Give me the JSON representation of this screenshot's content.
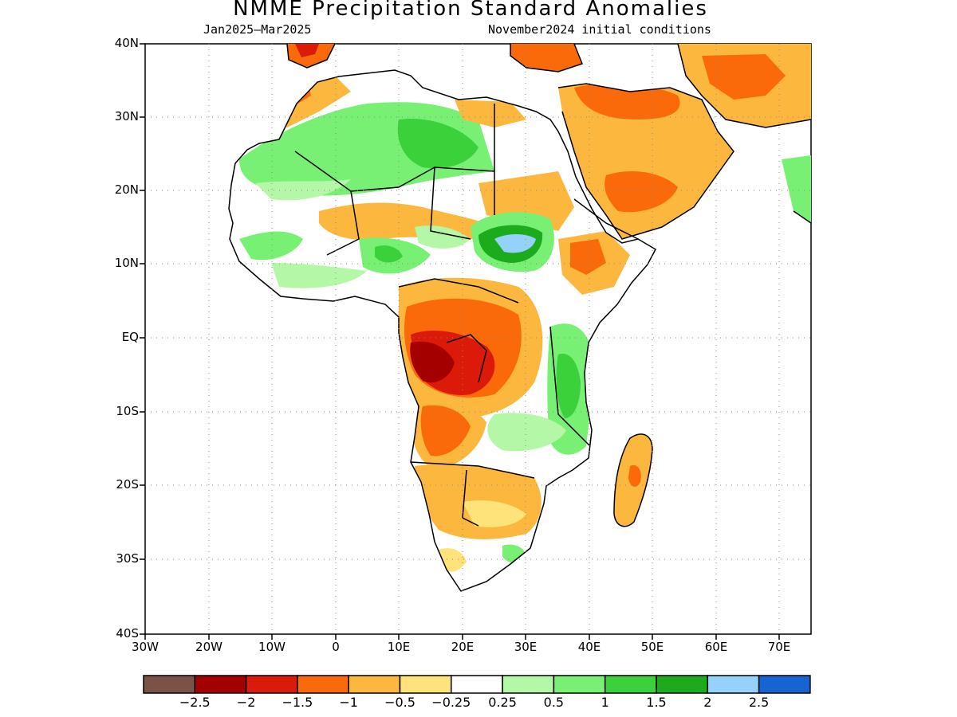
{
  "title": "NMME Precipitation Standard Anomalies",
  "subtitle_left": "Jan2025–Mar2025",
  "subtitle_right": "November2024 initial conditions",
  "lat_labels": [
    "40N",
    "30N",
    "20N",
    "10N",
    "EQ",
    "10S",
    "20S",
    "30S",
    "40S"
  ],
  "lon_labels": [
    "30W",
    "20W",
    "10W",
    "0",
    "10E",
    "20E",
    "30E",
    "40E",
    "50E",
    "60E",
    "70E"
  ],
  "colorbar": {
    "colors": [
      "#7b5246",
      "#a50000",
      "#dc1a0a",
      "#fa6a0a",
      "#fbb73e",
      "#fee37a",
      "#ffffff",
      "#b4f7a7",
      "#78f073",
      "#3ad13a",
      "#1cab1c",
      "#94d2fa",
      "#1464d2"
    ],
    "labels": [
      "−2.5",
      "−2",
      "−1.5",
      "−1",
      "−0.5",
      "−0.25",
      "0.25",
      "0.5",
      "1",
      "1.5",
      "2",
      "2.5"
    ]
  }
}
